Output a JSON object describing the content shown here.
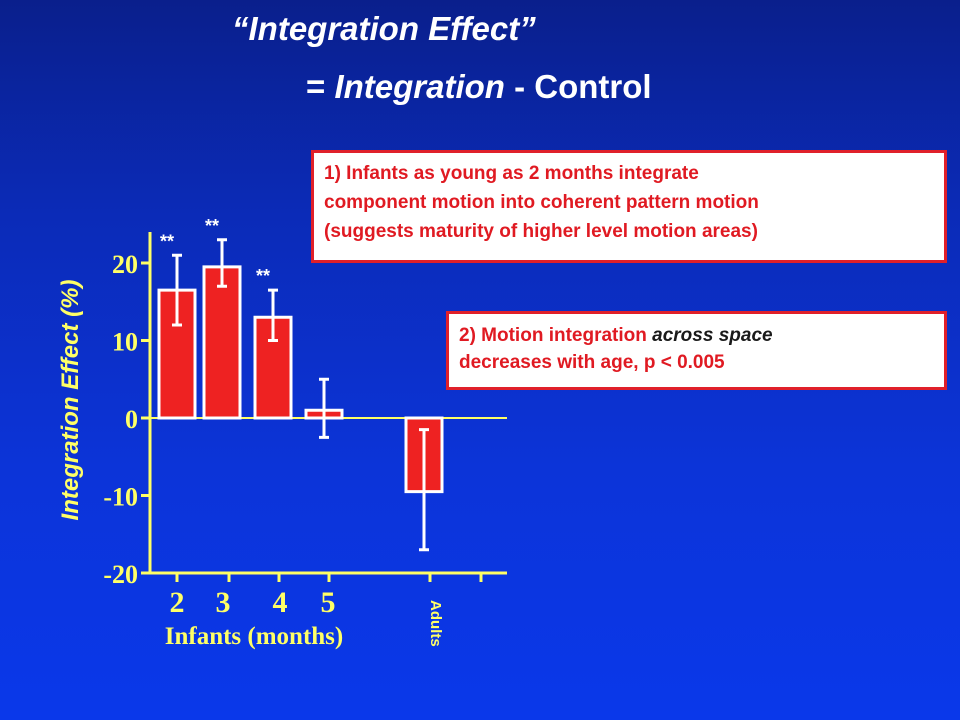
{
  "title": {
    "line1": "“Integration Effect”",
    "line2_prefix": "= ",
    "line2_italic": "Integration",
    "line2_suffix": " - Control"
  },
  "notes": [
    {
      "lines": [
        "1) Infants as young as 2 months integrate",
        "component motion into coherent pattern motion",
        "(suggests maturity of higher level motion areas)"
      ]
    },
    {
      "line1_prefix": "2) Motion integration ",
      "line1_emph": "across space",
      "line2": "decreases with age, p < 0.005"
    }
  ],
  "colors": {
    "background_top": "#0a1f8c",
    "background_bottom": "#0a38ea",
    "axis": "#ffff66",
    "bar": "#ee2222",
    "bar_outline": "#ffffff",
    "text": "#ffffff",
    "note_border": "#e0202a",
    "note_text": "#e01a22"
  },
  "chart_data": {
    "type": "bar",
    "ylabel": "Integration Effect (%)",
    "xlabel": "Infants (months)",
    "ylim": [
      -20,
      24
    ],
    "yticks": [
      20,
      10,
      0,
      -10,
      -20
    ],
    "ytick_labels": [
      "20",
      "10",
      "0",
      "-10",
      "-20"
    ],
    "categories": [
      "2",
      "3",
      "4",
      "5",
      "Adults"
    ],
    "values": [
      16.5,
      19.5,
      13,
      1,
      -9.5
    ],
    "error_low": [
      12,
      17,
      10,
      -2.5,
      -17
    ],
    "error_high": [
      21,
      23,
      16.5,
      5,
      -1.5
    ],
    "significance": [
      "**",
      "**",
      "**",
      "",
      ""
    ]
  }
}
